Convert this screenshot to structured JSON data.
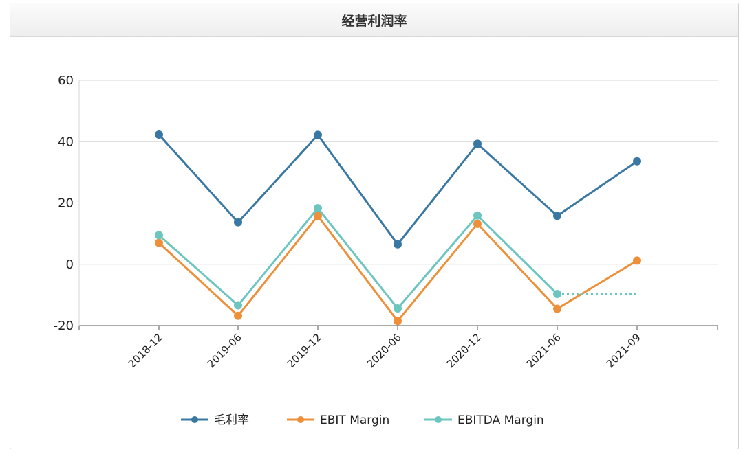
{
  "chart_data": {
    "type": "line",
    "title": "经营利润率",
    "categories": [
      "2018-12",
      "2019-06",
      "2019-12",
      "2020-06",
      "2020-12",
      "2021-06",
      "2021-09"
    ],
    "ylim": [
      -20,
      60
    ],
    "yticks": [
      60,
      40,
      20,
      0,
      -20
    ],
    "grid": true,
    "legend_position": "bottom",
    "series": [
      {
        "name": "毛利率",
        "color": "#3a78a4",
        "values": [
          42.3,
          13.7,
          42.2,
          6.5,
          39.3,
          15.8,
          33.6
        ]
      },
      {
        "name": "EBIT Margin",
        "color": "#ee8f3a",
        "values": [
          7.0,
          -16.8,
          15.8,
          -18.5,
          13.2,
          -14.5,
          1.2
        ]
      },
      {
        "name": "EBITDA Margin",
        "color": "#6dc5c0",
        "values": [
          9.5,
          -13.4,
          18.3,
          -14.4,
          15.9,
          -9.7,
          null
        ],
        "dotted_to": {
          "category": "2021-09",
          "value": -9.7
        }
      }
    ]
  }
}
